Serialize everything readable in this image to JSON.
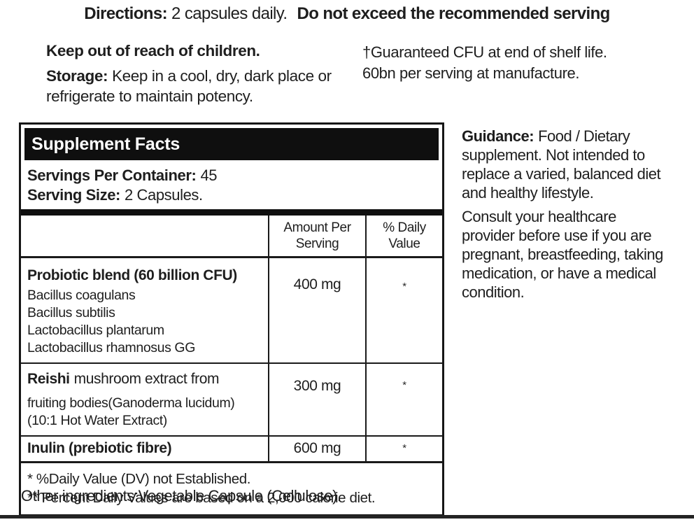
{
  "directions": {
    "label": "Directions:",
    "dosage": "2 capsules daily.",
    "warning": "Do not exceed the recommended serving"
  },
  "safety": {
    "keep_out": "Keep out of reach of children.",
    "storage_label": "Storage:",
    "storage_text": "Keep in a cool, dry, dark place or refrigerate to maintain potency."
  },
  "cfu_note": {
    "line1": "†Guaranteed CFU at end of shelf life.",
    "line2": "60bn per serving at manufacture."
  },
  "supplement_facts": {
    "title": "Supplement Facts",
    "servings_label": "Servings Per Container:",
    "servings_value": "45",
    "serving_size_label": "Serving Size:",
    "serving_size_value": "2 Capsules.",
    "col_amount": "Amount Per Serving",
    "col_dv": "% Daily Value",
    "rows": [
      {
        "name": "Probiotic blend (60 billion CFU)",
        "sub_items": [
          "Bacillus coagulans",
          "Bacillus subtilis",
          "Lactobacillus plantarum",
          "Lactobacillus rhamnosus GG"
        ],
        "amount": "400 mg",
        "dv": "*"
      },
      {
        "name_bold": "Reishi",
        "name_rest": "mushroom extract from",
        "sub_items": [
          "fruiting bodies(Ganoderma lucidum)",
          "(10:1 Hot Water Extract)"
        ],
        "amount": "300 mg",
        "dv": "*"
      },
      {
        "name": "Inulin (prebiotic fibre)",
        "amount": "600 mg",
        "dv": "*"
      }
    ],
    "footnote1": "* %Daily Value (DV) not Established.",
    "footnote2": "** Percent Daily Values are based on a 2,000 calorie diet."
  },
  "guidance": {
    "label": "Guidance:",
    "para1": "Food / Dietary supplement. Not intended to replace a varied, balanced diet and healthy lifestyle.",
    "para2": "Consult your healthcare provider before use if you are pregnant, breastfeeding, taking medication, or have a medical condition."
  },
  "other_ingredients": "Other ingredients:Vegetable Capsule (Cellulose)."
}
